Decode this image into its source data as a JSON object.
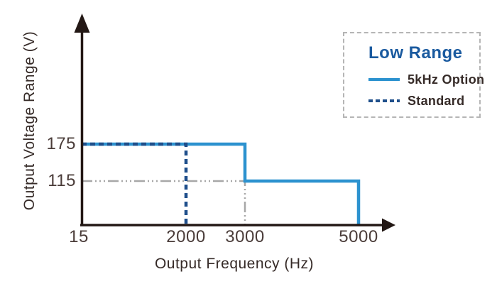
{
  "colors": {
    "background": "#ffffff",
    "axis": "#231815",
    "tick_text": "#4a3c39",
    "label_text": "#362b28",
    "solid_blue": "#2c92cf",
    "dashed_blue": "#1f4f8b",
    "legend_title_blue": "#1a5a9f",
    "guide_gray": "#a7a7a7",
    "legend_border_gray": "#b5b5b5"
  },
  "chart_data": {
    "type": "line",
    "title": "",
    "xlabel": "Output Frequency (Hz)",
    "ylabel": "Output Voltage Range (V)",
    "x_ticks": [
      15,
      2000,
      3000,
      5000
    ],
    "y_ticks": [
      175,
      115
    ],
    "xlim": [
      15,
      5600
    ],
    "ylim": [
      0,
      260
    ],
    "grid": false,
    "legend": {
      "title": "Low Range",
      "position": "top-right",
      "border": "dashed-gray"
    },
    "series": [
      {
        "name": "5kHz Option",
        "style": "solid",
        "color": "#2c92cf",
        "points": [
          [
            15,
            175
          ],
          [
            3000,
            175
          ],
          [
            3000,
            115
          ],
          [
            5000,
            115
          ],
          [
            5000,
            0
          ]
        ]
      },
      {
        "name": "Standard",
        "style": "dashed",
        "color": "#1f4f8b",
        "points": [
          [
            15,
            175
          ],
          [
            2000,
            175
          ],
          [
            2000,
            0
          ]
        ]
      }
    ],
    "guides": [
      {
        "name": "115V at 3000Hz reference",
        "style": "dash-dot",
        "color": "#a7a7a7",
        "points": [
          [
            15,
            115
          ],
          [
            3000,
            115
          ],
          [
            3000,
            0
          ]
        ]
      }
    ]
  }
}
